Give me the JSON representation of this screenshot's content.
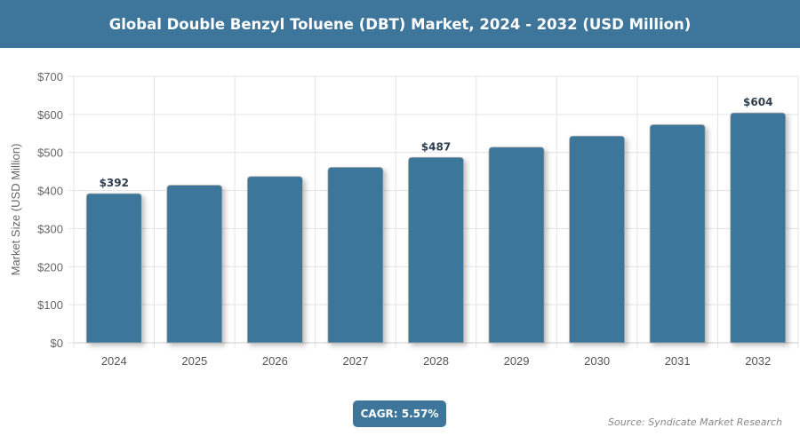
{
  "header": {
    "title": "Global Double Benzyl Toluene (DBT) Market, 2024 - 2032 (USD Million)"
  },
  "chart_data": {
    "type": "bar",
    "title": "Global Double Benzyl Toluene (DBT) Market, 2024 - 2032 (USD Million)",
    "xlabel": "",
    "ylabel": "Market Size (USD Million)",
    "categories": [
      "2024",
      "2025",
      "2026",
      "2027",
      "2028",
      "2029",
      "2030",
      "2031",
      "2032"
    ],
    "values": [
      392,
      414,
      437,
      461,
      487,
      514,
      543,
      573,
      604
    ],
    "data_labels": {
      "2024": "$392",
      "2028": "$487",
      "2032": "$604"
    },
    "ylim": [
      0,
      700
    ],
    "yticks": [
      0,
      100,
      200,
      300,
      400,
      500,
      600,
      700
    ],
    "ytick_labels": [
      "$0",
      "$100",
      "$200",
      "$300",
      "$400",
      "$500",
      "$600",
      "$700"
    ],
    "grid": true,
    "bar_color": "#3e769b"
  },
  "footer": {
    "cagr": "CAGR: 5.57%",
    "source": "Source: Syndicate Market Research"
  }
}
